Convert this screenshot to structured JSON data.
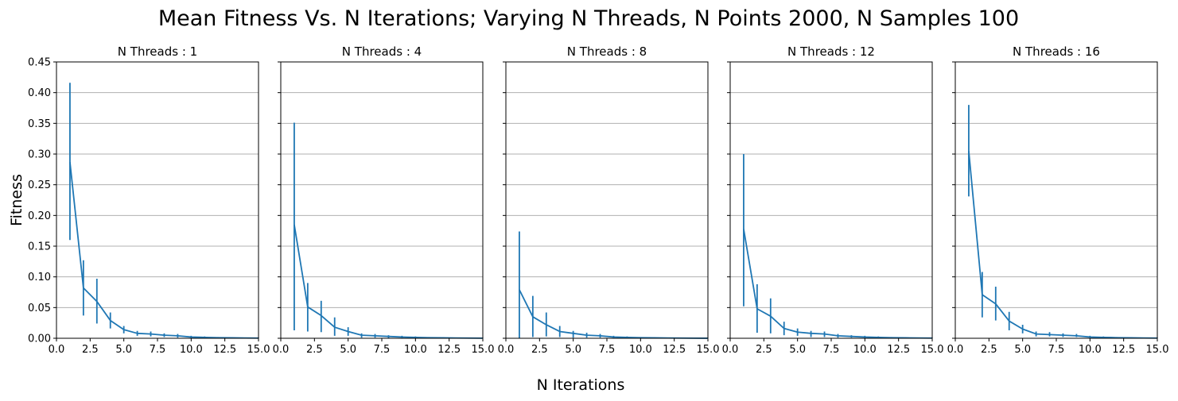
{
  "chart_data": {
    "type": "line",
    "title": "Mean Fitness Vs. N Iterations; Varying N Threads, N Points 2000, N Samples 100",
    "xlabel": "N Iterations",
    "ylabel": "Fitness",
    "xlim": [
      0,
      15
    ],
    "ylim": [
      0,
      0.45
    ],
    "x_ticks": [
      "0.0",
      "2.5",
      "5.0",
      "7.5",
      "10.0",
      "12.5",
      "15.0"
    ],
    "y_ticks": [
      "0.00",
      "0.05",
      "0.10",
      "0.15",
      "0.20",
      "0.25",
      "0.30",
      "0.35",
      "0.40",
      "0.45"
    ],
    "grid": "horizontal",
    "line_color": "#1f77b4",
    "panels": [
      {
        "title": "N Threads : 1",
        "x": [
          1,
          2,
          3,
          4,
          5,
          6,
          7,
          8,
          9,
          10,
          11,
          12,
          13,
          14,
          15
        ],
        "y": [
          0.287,
          0.082,
          0.06,
          0.029,
          0.014,
          0.008,
          0.007,
          0.005,
          0.004,
          0.002,
          0.0015,
          0.001,
          0.0008,
          0.0005,
          0.0003
        ],
        "err_low": [
          0.16,
          0.037,
          0.024,
          0.016,
          0.008,
          0.004,
          0.003,
          0.002,
          0.001,
          0.0005,
          0.0003,
          0.0002,
          0.0001,
          0.0001,
          0.0
        ],
        "err_high": [
          0.416,
          0.127,
          0.097,
          0.042,
          0.02,
          0.012,
          0.011,
          0.008,
          0.007,
          0.004,
          0.003,
          0.002,
          0.0015,
          0.001,
          0.0006
        ]
      },
      {
        "title": "N Threads : 4",
        "x": [
          1,
          2,
          3,
          4,
          5,
          6,
          7,
          8,
          9,
          10,
          11,
          12,
          13,
          14,
          15
        ],
        "y": [
          0.185,
          0.051,
          0.037,
          0.018,
          0.011,
          0.005,
          0.004,
          0.003,
          0.002,
          0.0015,
          0.001,
          0.0007,
          0.0005,
          0.0003,
          0.0002
        ],
        "err_low": [
          0.013,
          0.011,
          0.01,
          0.004,
          0.004,
          0.001,
          0.001,
          0.0005,
          0.0003,
          0.0002,
          0.0001,
          0.0001,
          0.0,
          0.0,
          0.0
        ],
        "err_high": [
          0.351,
          0.09,
          0.061,
          0.034,
          0.018,
          0.008,
          0.007,
          0.005,
          0.004,
          0.003,
          0.002,
          0.0015,
          0.001,
          0.0006,
          0.0004
        ]
      },
      {
        "title": "N Threads : 8",
        "x": [
          1,
          2,
          3,
          4,
          5,
          6,
          7,
          8,
          9,
          10,
          11,
          12,
          13,
          14,
          15
        ],
        "y": [
          0.079,
          0.035,
          0.022,
          0.011,
          0.008,
          0.005,
          0.004,
          0.002,
          0.0015,
          0.001,
          0.0007,
          0.0005,
          0.0003,
          0.0002,
          0.0001
        ],
        "err_low": [
          0.0,
          0.002,
          0.003,
          0.002,
          0.001,
          0.001,
          0.001,
          0.0005,
          0.0003,
          0.0002,
          0.0001,
          0.0,
          0.0,
          0.0,
          0.0
        ],
        "err_high": [
          0.174,
          0.069,
          0.042,
          0.02,
          0.012,
          0.009,
          0.007,
          0.004,
          0.003,
          0.002,
          0.0015,
          0.001,
          0.0006,
          0.0004,
          0.0002
        ]
      },
      {
        "title": "N Threads : 12",
        "x": [
          1,
          2,
          3,
          4,
          5,
          6,
          7,
          8,
          9,
          10,
          11,
          12,
          13,
          14,
          15
        ],
        "y": [
          0.178,
          0.048,
          0.036,
          0.016,
          0.01,
          0.008,
          0.007,
          0.004,
          0.003,
          0.002,
          0.0015,
          0.001,
          0.0007,
          0.0005,
          0.0003
        ],
        "err_low": [
          0.052,
          0.009,
          0.008,
          0.005,
          0.004,
          0.002,
          0.002,
          0.001,
          0.001,
          0.0005,
          0.0003,
          0.0002,
          0.0001,
          0.0001,
          0.0
        ],
        "err_high": [
          0.3,
          0.088,
          0.065,
          0.027,
          0.016,
          0.012,
          0.011,
          0.007,
          0.005,
          0.004,
          0.003,
          0.002,
          0.0014,
          0.001,
          0.0006
        ]
      },
      {
        "title": "N Threads : 16",
        "x": [
          1,
          2,
          3,
          4,
          5,
          6,
          7,
          8,
          9,
          10,
          11,
          12,
          13,
          14,
          15
        ],
        "y": [
          0.305,
          0.071,
          0.056,
          0.028,
          0.015,
          0.007,
          0.006,
          0.005,
          0.004,
          0.002,
          0.0015,
          0.001,
          0.0007,
          0.0005,
          0.0003
        ],
        "err_low": [
          0.231,
          0.034,
          0.029,
          0.013,
          0.008,
          0.003,
          0.003,
          0.002,
          0.002,
          0.001,
          0.0005,
          0.0003,
          0.0002,
          0.0001,
          0.0
        ],
        "err_high": [
          0.38,
          0.108,
          0.084,
          0.043,
          0.022,
          0.011,
          0.01,
          0.008,
          0.007,
          0.004,
          0.003,
          0.002,
          0.0014,
          0.001,
          0.0006
        ]
      }
    ]
  }
}
